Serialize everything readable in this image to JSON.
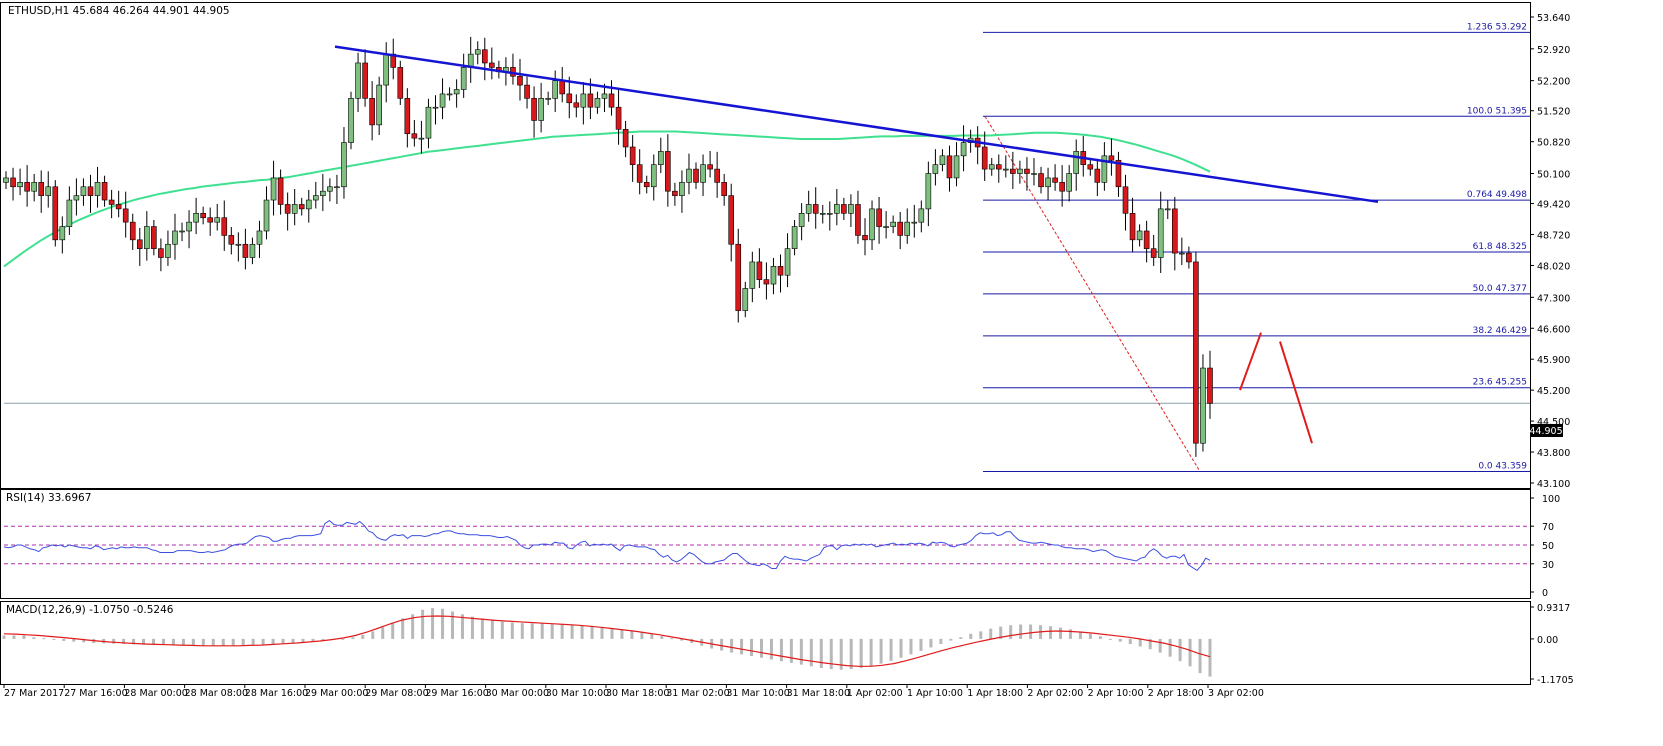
{
  "symbol_header": "ETHUSD,H1  45.684 46.264 44.901 44.905",
  "price_badge": "44.905",
  "colors": {
    "bull": "#7fbf7f",
    "bear": "#d7191c",
    "trend": "#1414d2",
    "sma": "#3fe08f",
    "fib": "#1a1aa8",
    "rsi": "#3b4fe0",
    "macd_signal": "#e11b1b",
    "macd_hist": "#b8b8b8",
    "level_dash": "#b02fb0"
  },
  "time_axis": [
    "27 Mar 2017",
    "27 Mar 16:00",
    "28 Mar 00:00",
    "28 Mar 08:00",
    "28 Mar 16:00",
    "29 Mar 00:00",
    "29 Mar 08:00",
    "29 Mar 16:00",
    "30 Mar 00:00",
    "30 Mar 10:00",
    "30 Mar 18:00",
    "31 Mar 02:00",
    "31 Mar 10:00",
    "31 Mar 18:00",
    "1 Apr 02:00",
    "1 Apr 10:00",
    "1 Apr 18:00",
    "2 Apr 02:00",
    "2 Apr 10:00",
    "2 Apr 18:00",
    "3 Apr 02:00"
  ],
  "chart_data": [
    {
      "type": "candlestick",
      "title": "ETHUSD,H1",
      "ohlc_last": {
        "open": 45.684,
        "high": 46.264,
        "low": 44.901,
        "close": 44.905
      },
      "ylim": [
        43.1,
        53.64
      ],
      "y_ticks": [
        "53.640",
        "52.920",
        "52.200",
        "51.520",
        "50.820",
        "50.100",
        "49.420",
        "48.720",
        "48.020",
        "47.300",
        "46.600",
        "45.900",
        "45.200",
        "44.500",
        "43.800",
        "43.100"
      ],
      "close_series": [
        50.0,
        49.8,
        49.9,
        49.7,
        49.9,
        49.6,
        49.8,
        48.6,
        48.9,
        49.5,
        49.6,
        49.8,
        49.6,
        49.9,
        49.5,
        49.4,
        49.3,
        49.0,
        48.6,
        48.4,
        48.9,
        48.4,
        48.2,
        48.5,
        48.8,
        48.8,
        49.0,
        49.2,
        49.1,
        49.0,
        49.1,
        48.7,
        48.5,
        48.5,
        48.2,
        48.5,
        48.8,
        49.5,
        50.0,
        49.4,
        49.2,
        49.4,
        49.3,
        49.5,
        49.6,
        49.7,
        49.8,
        49.8,
        50.8,
        51.8,
        52.6,
        51.8,
        51.2,
        52.1,
        52.8,
        52.5,
        51.8,
        51.0,
        50.9,
        50.9,
        51.6,
        51.6,
        51.9,
        51.9,
        52.0,
        52.5,
        52.8,
        52.9,
        52.6,
        52.5,
        52.4,
        52.5,
        52.3,
        52.1,
        51.8,
        51.3,
        51.8,
        51.8,
        52.2,
        51.9,
        51.7,
        51.6,
        51.9,
        51.6,
        51.8,
        51.9,
        51.6,
        51.1,
        50.7,
        50.3,
        49.9,
        49.8,
        50.3,
        50.6,
        49.7,
        49.6,
        49.9,
        50.2,
        49.9,
        50.3,
        50.2,
        49.9,
        49.6,
        48.5,
        47.0,
        47.5,
        48.1,
        47.7,
        47.6,
        48.0,
        47.8,
        48.4,
        48.9,
        49.2,
        49.4,
        49.2,
        49.2,
        49.2,
        49.4,
        49.2,
        49.4,
        48.7,
        48.6,
        49.3,
        48.9,
        48.9,
        49.0,
        48.7,
        49.0,
        49.0,
        49.3,
        50.1,
        50.3,
        50.5,
        50.0,
        50.5,
        50.8,
        50.9,
        50.7,
        50.2,
        50.3,
        50.2,
        50.2,
        50.1,
        50.2,
        50.1,
        50.1,
        49.8,
        50.0,
        49.9,
        49.7,
        50.1,
        50.6,
        50.3,
        50.2,
        49.9,
        50.5,
        50.4,
        49.8,
        49.2,
        48.6,
        48.8,
        48.4,
        48.2,
        49.3,
        49.3,
        48.3,
        48.3,
        48.1,
        44.0,
        45.7,
        44.9
      ],
      "sma_series": [
        48.0,
        48.12,
        48.24,
        48.36,
        48.47,
        48.58,
        48.68,
        48.77,
        48.86,
        48.95,
        49.03,
        49.1,
        49.17,
        49.24,
        49.3,
        49.36,
        49.41,
        49.46,
        49.51,
        49.55,
        49.59,
        49.63,
        49.66,
        49.69,
        49.72,
        49.75,
        49.77,
        49.8,
        49.82,
        49.84,
        49.86,
        49.88,
        49.9,
        49.91,
        49.93,
        49.95,
        49.96,
        49.98,
        50.0,
        50.02,
        50.05,
        50.08,
        50.11,
        50.14,
        50.17,
        50.2,
        50.23,
        50.26,
        50.29,
        50.32,
        50.35,
        50.38,
        50.41,
        50.44,
        50.47,
        50.5,
        50.53,
        50.56,
        50.59,
        50.61,
        50.63,
        50.65,
        50.67,
        50.69,
        50.71,
        50.73,
        50.75,
        50.77,
        50.79,
        50.81,
        50.83,
        50.85,
        50.87,
        50.89,
        50.91,
        50.93,
        50.94,
        50.95,
        50.96,
        50.97,
        50.98,
        50.99,
        51.0,
        51.01,
        51.02,
        51.03,
        51.04,
        51.05,
        51.05,
        51.05,
        51.05,
        51.05,
        51.05,
        51.04,
        51.03,
        51.02,
        51.01,
        51.0,
        50.99,
        50.98,
        50.97,
        50.96,
        50.95,
        50.94,
        50.93,
        50.92,
        50.91,
        50.9,
        50.89,
        50.88,
        50.88,
        50.88,
        50.88,
        50.88,
        50.88,
        50.89,
        50.9,
        50.91,
        50.92,
        50.93,
        50.94,
        50.94,
        50.94,
        50.95,
        50.95,
        50.95,
        50.95,
        50.95,
        50.95,
        50.95,
        50.95,
        50.96,
        50.96,
        50.96,
        50.96,
        50.96,
        50.97,
        50.98,
        50.99,
        51.0,
        51.01,
        51.02,
        51.02,
        51.02,
        51.02,
        51.01,
        51.0,
        50.99,
        50.97,
        50.95,
        50.93,
        50.9,
        50.87,
        50.83,
        50.79,
        50.75,
        50.7,
        50.65,
        50.6,
        50.55,
        50.5,
        50.44,
        50.37,
        50.3,
        50.22,
        50.14
      ],
      "trendline": {
        "from": 52.97,
        "to": 49.46
      },
      "fib_levels": [
        {
          "ratio": "1.236",
          "value": "53.292"
        },
        {
          "ratio": "100.0",
          "value": "51.395"
        },
        {
          "ratio": "0.764",
          "value": "49.498"
        },
        {
          "ratio": "61.8",
          "value": "48.325"
        },
        {
          "ratio": "50.0",
          "value": "47.377"
        },
        {
          "ratio": "38.2",
          "value": "46.429"
        },
        {
          "ratio": "23.6",
          "value": "45.255"
        },
        {
          "ratio": "0.0",
          "value": "43.359"
        }
      ],
      "fib_range": {
        "high": 51.395,
        "low": 43.359
      },
      "projection_arrows": [
        {
          "from": 45.2,
          "to": 46.5
        },
        {
          "from": 46.3,
          "to": 44.0
        }
      ]
    },
    {
      "type": "line",
      "title": "RSI(14) 33.6967",
      "ylim": [
        0,
        100
      ],
      "y_ticks": [
        "100",
        "70",
        "50",
        "30",
        "0"
      ],
      "levels": [
        70,
        50,
        30
      ],
      "values": [
        48,
        47,
        48,
        50,
        50,
        48,
        46,
        45,
        43,
        47,
        48,
        50,
        49,
        50,
        48,
        50,
        49,
        48,
        47,
        47,
        46,
        49,
        48,
        45,
        46,
        47,
        46,
        48,
        47,
        47,
        48,
        47,
        47,
        47,
        45,
        44,
        42,
        42,
        42,
        42,
        44,
        44,
        44,
        44,
        43,
        42,
        42,
        43,
        42,
        43,
        44,
        45,
        48,
        50,
        51,
        51,
        52,
        56,
        59,
        60,
        59,
        58,
        54,
        54,
        56,
        57,
        57,
        59,
        60,
        60,
        60,
        60,
        61,
        62,
        73,
        76,
        72,
        71,
        71,
        74,
        73,
        72,
        75,
        71,
        65,
        63,
        58,
        56,
        55,
        59,
        61,
        60,
        61,
        57,
        60,
        60,
        60,
        59,
        60,
        62,
        62,
        64,
        65,
        65,
        63,
        62,
        62,
        61,
        61,
        61,
        60,
        60,
        60,
        59,
        58,
        58,
        59,
        57,
        55,
        50,
        47,
        46,
        50,
        50,
        51,
        51,
        50,
        53,
        52,
        52,
        47,
        46,
        50,
        53,
        54,
        49,
        51,
        50,
        51,
        50,
        51,
        47,
        44,
        49,
        50,
        49,
        48,
        48,
        48,
        46,
        45,
        40,
        37,
        39,
        34,
        32,
        34,
        38,
        42,
        40,
        36,
        32,
        30,
        30,
        32,
        33,
        34,
        38,
        41,
        41,
        37,
        33,
        30,
        29,
        28,
        30,
        28,
        25,
        25,
        33,
        38,
        36,
        35,
        35,
        34,
        33,
        36,
        38,
        40,
        47,
        49,
        49,
        45,
        49,
        50,
        49,
        51,
        50,
        51,
        50,
        51,
        48,
        49,
        50,
        51,
        52,
        50,
        51,
        50,
        52,
        51,
        52,
        51,
        49,
        53,
        52,
        53,
        52,
        49,
        48,
        50,
        51,
        52,
        55,
        60,
        63,
        62,
        62,
        63,
        60,
        61,
        64,
        64,
        59,
        55,
        54,
        53,
        52,
        52,
        53,
        52,
        51,
        50,
        50,
        48,
        47,
        47,
        46,
        46,
        46,
        45,
        43,
        44,
        45,
        44,
        41,
        38,
        37,
        36,
        35,
        34,
        33,
        36,
        37,
        43,
        46,
        43,
        38,
        36,
        38,
        38,
        36,
        40,
        29,
        26,
        23,
        28,
        36,
        33.7
      ]
    },
    {
      "type": "bar+line",
      "title": "MACD(12,26,9) -1.0750 -0.5246",
      "ylim": [
        -1.1705,
        0.9317
      ],
      "y_ticks": [
        "0.9317",
        "0.00",
        "-1.1705"
      ],
      "histogram": [
        0.1,
        0.1,
        0.1,
        0.05,
        0.02,
        -0.02,
        -0.06,
        -0.08,
        -0.1,
        -0.12,
        -0.13,
        -0.14,
        -0.15,
        -0.16,
        -0.17,
        -0.18,
        -0.18,
        -0.19,
        -0.19,
        -0.2,
        -0.2,
        -0.2,
        -0.2,
        -0.19,
        -0.18,
        -0.17,
        -0.16,
        -0.15,
        -0.13,
        -0.11,
        -0.09,
        -0.07,
        -0.05,
        -0.03,
        0.0,
        0.05,
        0.12,
        0.22,
        0.35,
        0.48,
        0.6,
        0.72,
        0.85,
        0.9,
        0.88,
        0.8,
        0.72,
        0.65,
        0.6,
        0.55,
        0.5,
        0.48,
        0.46,
        0.45,
        0.45,
        0.44,
        0.43,
        0.42,
        0.4,
        0.38,
        0.35,
        0.32,
        0.28,
        0.25,
        0.2,
        0.15,
        0.08,
        0.02,
        -0.05,
        -0.12,
        -0.2,
        -0.28,
        -0.34,
        -0.4,
        -0.45,
        -0.5,
        -0.55,
        -0.6,
        -0.65,
        -0.7,
        -0.75,
        -0.8,
        -0.85,
        -0.88,
        -0.9,
        -0.88,
        -0.85,
        -0.8,
        -0.72,
        -0.64,
        -0.55,
        -0.45,
        -0.35,
        -0.25,
        -0.15,
        -0.05,
        0.05,
        0.15,
        0.22,
        0.3,
        0.36,
        0.4,
        0.42,
        0.42,
        0.4,
        0.37,
        0.33,
        0.28,
        0.22,
        0.15,
        0.08,
        0.0,
        -0.08,
        -0.15,
        -0.22,
        -0.3,
        -0.4,
        -0.52,
        -0.65,
        -0.8,
        -1.0,
        -1.1
      ],
      "signal": [
        0.15,
        0.14,
        0.12,
        0.1,
        0.07,
        0.04,
        0.01,
        -0.03,
        -0.06,
        -0.09,
        -0.11,
        -0.13,
        -0.15,
        -0.16,
        -0.17,
        -0.18,
        -0.19,
        -0.2,
        -0.2,
        -0.2,
        -0.2,
        -0.19,
        -0.18,
        -0.16,
        -0.14,
        -0.12,
        -0.09,
        -0.06,
        -0.02,
        0.03,
        0.1,
        0.2,
        0.32,
        0.44,
        0.55,
        0.62,
        0.66,
        0.67,
        0.66,
        0.63,
        0.6,
        0.57,
        0.54,
        0.52,
        0.5,
        0.48,
        0.46,
        0.44,
        0.42,
        0.4,
        0.37,
        0.34,
        0.3,
        0.26,
        0.22,
        0.17,
        0.12,
        0.06,
        0.0,
        -0.06,
        -0.12,
        -0.18,
        -0.24,
        -0.3,
        -0.36,
        -0.42,
        -0.48,
        -0.54,
        -0.6,
        -0.65,
        -0.7,
        -0.74,
        -0.78,
        -0.8,
        -0.8,
        -0.77,
        -0.72,
        -0.64,
        -0.55,
        -0.45,
        -0.35,
        -0.26,
        -0.18,
        -0.1,
        -0.03,
        0.04,
        0.1,
        0.15,
        0.19,
        0.22,
        0.23,
        0.22,
        0.2,
        0.17,
        0.13,
        0.09,
        0.05,
        0.0,
        -0.06,
        -0.12,
        -0.2,
        -0.3,
        -0.42,
        -0.52
      ]
    }
  ]
}
